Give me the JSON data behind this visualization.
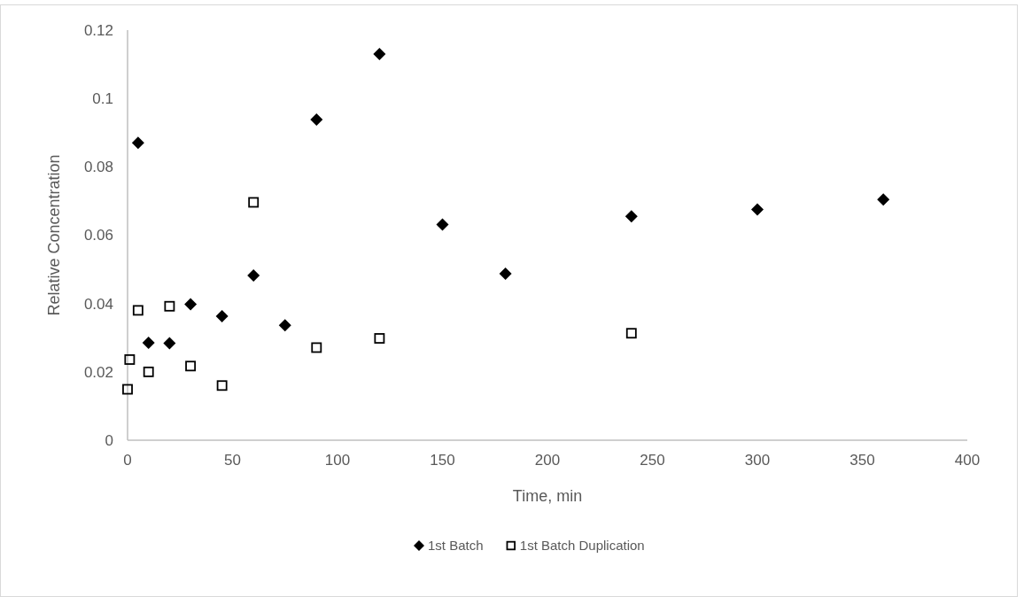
{
  "chart_data": {
    "type": "scatter",
    "xlabel": "Time, min",
    "ylabel": "Relative Concentration",
    "xlim": [
      0,
      400
    ],
    "xticks": [
      0,
      50,
      100,
      150,
      200,
      250,
      300,
      350,
      400
    ],
    "ylim": [
      0,
      0.12
    ],
    "yticks": [
      0,
      0.02,
      0.04,
      0.06,
      0.08,
      0.1,
      0.12
    ],
    "grid": false,
    "legend": "bottom",
    "series": [
      {
        "name": "1st Batch",
        "color": "#000000",
        "marker": "diamond",
        "x": [
          5,
          10,
          20,
          30,
          45,
          60,
          75,
          90,
          120,
          150,
          180,
          240,
          300,
          360
        ],
        "values": [
          0.087,
          0.0285,
          0.0284,
          0.0398,
          0.0363,
          0.0482,
          0.0336,
          0.0938,
          0.113,
          0.0631,
          0.0487,
          0.0655,
          0.0675,
          0.0704
        ]
      },
      {
        "name": "1st Batch Duplication",
        "color": "#000000",
        "marker": "square",
        "x": [
          0,
          1,
          5,
          10,
          20,
          30,
          45,
          60,
          90,
          120,
          240
        ],
        "values": [
          0.0149,
          0.0236,
          0.038,
          0.02,
          0.0392,
          0.0217,
          0.016,
          0.0696,
          0.0271,
          0.0298,
          0.0313
        ]
      }
    ]
  }
}
